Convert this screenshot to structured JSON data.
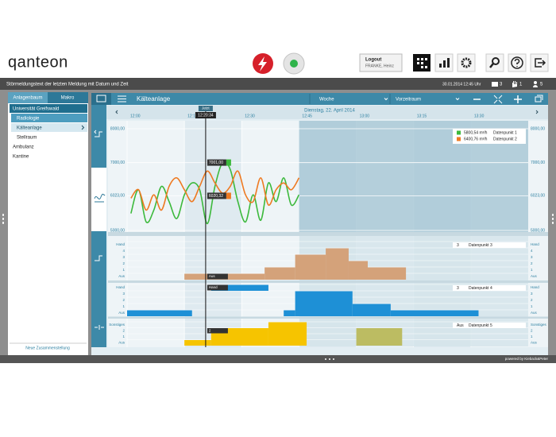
{
  "header": {
    "logo": "qanteon",
    "logout": "Logout",
    "user": "FRANKE, Heinz"
  },
  "status_bar": {
    "message": "Störmeldungstext der letzten Meldung mit Datum und Zeit",
    "datetime": "30.01.2014  12:45 Uhr",
    "messages": 3,
    "hands": 1,
    "users": 5
  },
  "sidebar": {
    "tabs": [
      "Anlagenbaum",
      "Makro"
    ],
    "tree": [
      "Universität Greifswald",
      "Radiologie",
      "Kälteanlage",
      "Stellraum",
      "Ambulanz",
      "Kantine"
    ],
    "footer": "Neue Zusammenstellung"
  },
  "toolbar": {
    "title": "Kälteanlage",
    "period": "Woche",
    "compare": "Vorzeitraum"
  },
  "timeline": {
    "date": "Dienstag, 22. April 2014",
    "now_label": "Jetzt",
    "now_time": "12:20:34",
    "xlim": [
      720,
      825
    ],
    "xticks": [
      {
        "value": 720,
        "label": "12:00"
      },
      {
        "value": 735,
        "label": "12:15"
      },
      {
        "value": 750,
        "label": "12:30"
      },
      {
        "value": 765,
        "label": "12:45"
      },
      {
        "value": 780,
        "label": "13:00"
      },
      {
        "value": 795,
        "label": "13:15"
      },
      {
        "value": 810,
        "label": "13:30"
      }
    ]
  },
  "chart_data": [
    {
      "type": "line",
      "x": [
        721,
        723,
        725,
        727,
        729,
        731,
        733,
        735,
        737,
        739,
        741,
        743,
        745,
        747,
        749,
        751,
        753,
        755,
        757,
        759,
        761,
        763,
        765
      ],
      "series": [
        {
          "name": "Datenpunkt 1",
          "current": "5800,54 m³/h",
          "color": "#3cb93c",
          "values": [
            5500,
            6200,
            5250,
            5600,
            6300,
            5850,
            5350,
            6050,
            6400,
            6200,
            5200,
            6300,
            7000,
            6800,
            5850,
            5250,
            6050,
            5300,
            6400,
            5850,
            6550,
            5750,
            6050
          ]
        },
        {
          "name": "Datenpunkt 2",
          "current": "6400,76 m³/h",
          "color": "#ee7a22",
          "values": [
            5950,
            6200,
            5600,
            6050,
            5600,
            6300,
            6550,
            6200,
            5850,
            6300,
            6750,
            6400,
            6100,
            6300,
            6750,
            6050,
            5850,
            6550,
            5750,
            6200,
            6400,
            6200,
            6550
          ]
        }
      ],
      "point_labels": [
        {
          "value": 7001,
          "label": "7001,00"
        },
        {
          "value": 6020.32,
          "label": "6020,32"
        }
      ],
      "ylim": [
        5000,
        8000
      ],
      "yticks": [
        {
          "value": 8000,
          "label": "8000,00"
        },
        {
          "value": 7000,
          "label": "7000,00"
        },
        {
          "value": 6023,
          "label": "6023,00"
        },
        {
          "value": 5000,
          "label": "5000,00"
        }
      ]
    },
    {
      "type": "state",
      "name": "Datenpunkt 3",
      "current_value": 3,
      "now_label": "Aus",
      "color": "#d4a27a",
      "levels": [
        "Aus",
        "1",
        "2",
        "3",
        "4",
        "Hand"
      ],
      "segments": [
        {
          "start": 735,
          "end": 756,
          "level": 0
        },
        {
          "start": 756,
          "end": 764,
          "level": 1
        },
        {
          "start": 764,
          "end": 772,
          "level": 3
        },
        {
          "start": 772,
          "end": 778,
          "level": 4
        },
        {
          "start": 778,
          "end": 783,
          "level": 2
        },
        {
          "start": 783,
          "end": 793,
          "level": 1
        }
      ]
    },
    {
      "type": "state",
      "name": "Datenpunkt 4",
      "current_value": 3,
      "now_label": "Hand",
      "color": "#1e90d6",
      "levels": [
        "Aus",
        "1",
        "2",
        "3",
        "Hand"
      ],
      "segments": [
        {
          "start": 720,
          "end": 737,
          "level": 0
        },
        {
          "start": 742,
          "end": 757,
          "level": 4
        },
        {
          "start": 761,
          "end": 764,
          "level": 0
        },
        {
          "start": 764,
          "end": 779,
          "level": 3
        },
        {
          "start": 779,
          "end": 789,
          "level": 1
        },
        {
          "start": 789,
          "end": 812,
          "level": 0
        }
      ]
    },
    {
      "type": "state",
      "name": "Datenpunkt 5",
      "current_value": "Aus",
      "now_label": "2",
      "color": "#f6c400",
      "levels": [
        "Aus",
        "1",
        "2",
        "Sonstiges"
      ],
      "segments": [
        {
          "start": 735,
          "end": 742,
          "level": 0
        },
        {
          "start": 742,
          "end": 757,
          "level": 2
        },
        {
          "start": 757,
          "end": 767,
          "level": 3
        },
        {
          "start": 780,
          "end": 792,
          "level": 2,
          "color": "#bcbc62"
        }
      ]
    }
  ]
}
